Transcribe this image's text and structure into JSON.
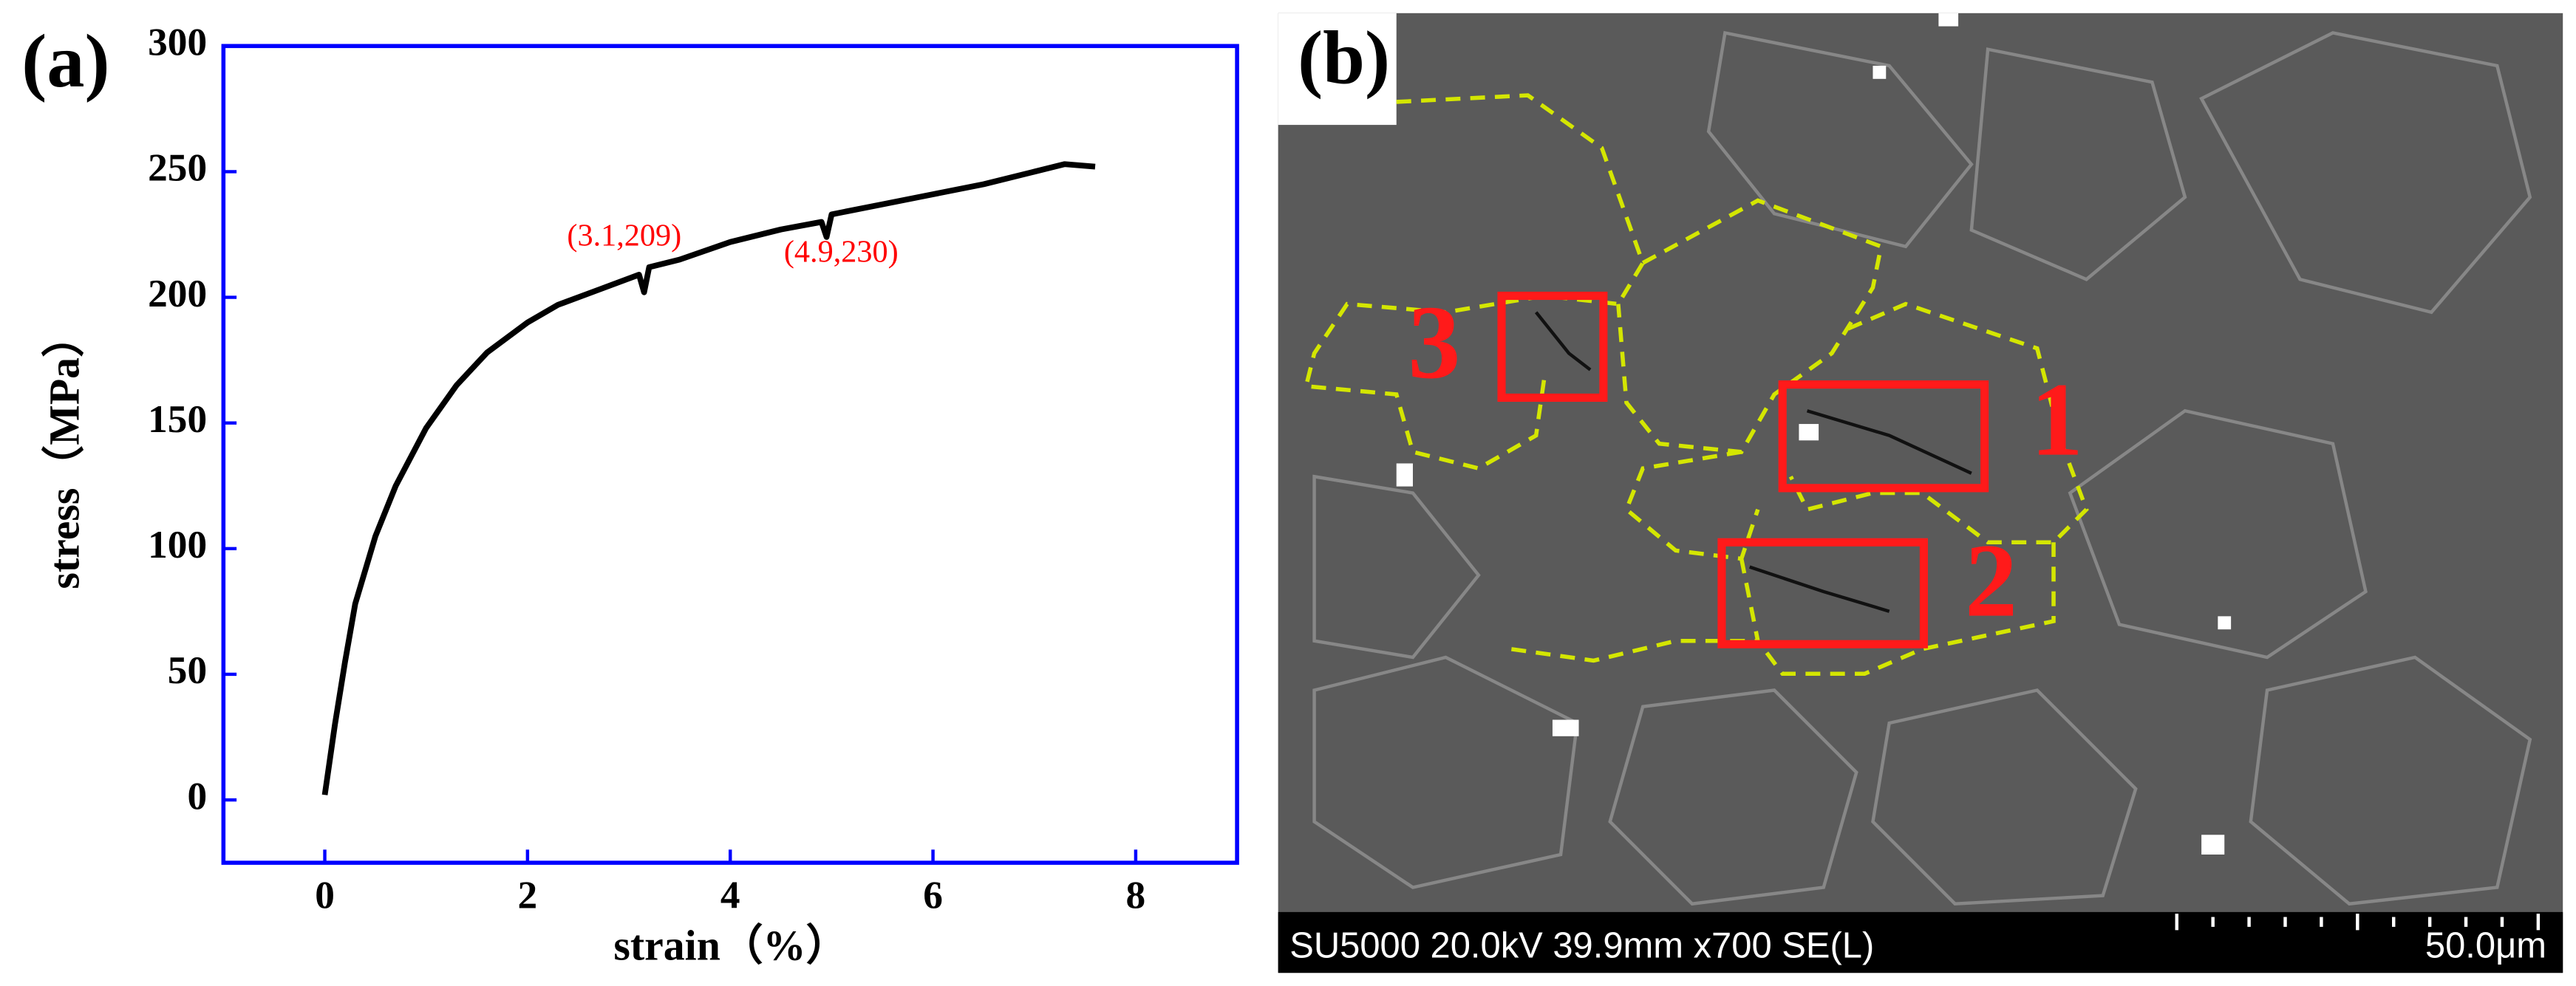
{
  "chart_data": {
    "type": "line",
    "panel_label": "(a)",
    "x_label": "strain（%）",
    "y_label": "stress（MPa）",
    "x": [
      0,
      0.1,
      0.2,
      0.3,
      0.5,
      0.7,
      1.0,
      1.3,
      1.6,
      2.0,
      2.3,
      2.7,
      3.1,
      3.15,
      3.2,
      3.5,
      4.0,
      4.5,
      4.9,
      4.95,
      5.0,
      5.5,
      6.0,
      6.5,
      7.0,
      7.3,
      7.6
    ],
    "values": [
      2,
      30,
      55,
      78,
      105,
      125,
      148,
      165,
      178,
      190,
      197,
      203,
      209,
      202,
      212,
      215,
      222,
      227,
      230,
      224,
      233,
      237,
      241,
      245,
      250,
      253,
      252
    ],
    "color": "#000000",
    "axis_color": "#0000ff",
    "xlim": [
      -1,
      9
    ],
    "ylim": [
      -25,
      300
    ],
    "xticks": [
      0,
      2,
      4,
      6,
      8
    ],
    "yticks": [
      0,
      50,
      100,
      150,
      200,
      250,
      300
    ],
    "annotations": [
      {
        "text": "(3.1,209)",
        "color": "#ff0000"
      },
      {
        "text": "(4.9,230)",
        "color": "#ff0000"
      }
    ]
  },
  "image": {
    "panel_label": "(b)",
    "region_labels": [
      "1",
      "2",
      "3"
    ],
    "info": "SU5000 20.0kV 39.9mm x700 SE(L)",
    "scale_bar": "50.0μm"
  }
}
